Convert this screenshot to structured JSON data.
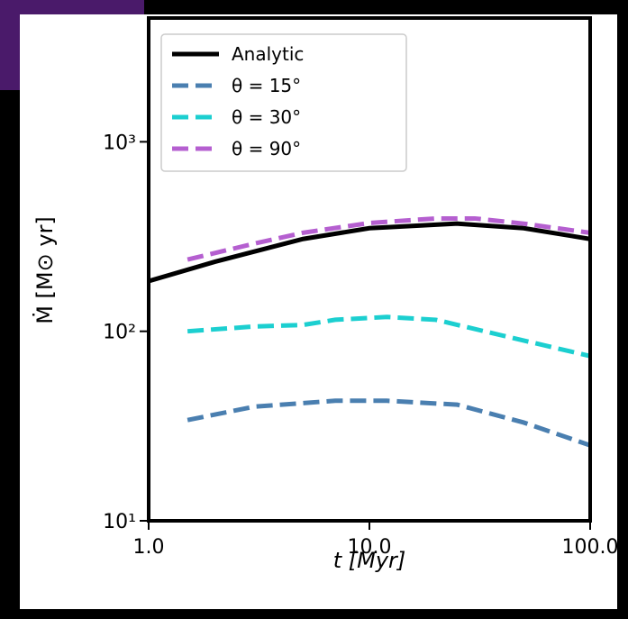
{
  "chart_data": {
    "type": "line",
    "log_x": true,
    "log_y": true,
    "xlabel": "t [Myr]",
    "ylabel": "Ṁ [M⊙ yr]",
    "xlim": [
      1,
      100
    ],
    "ylim": [
      10,
      4500
    ],
    "xticks": [
      {
        "value": 1,
        "label": "1.0"
      },
      {
        "value": 10,
        "label": "10.0"
      },
      {
        "value": 100,
        "label": "100.0"
      }
    ],
    "yticks": [
      {
        "value": 10,
        "label": "10¹"
      },
      {
        "value": 100,
        "label": "10²"
      },
      {
        "value": 1000,
        "label": "10³"
      }
    ],
    "legend": "upper left",
    "series": [
      {
        "name": "Analytic",
        "color": "#000000",
        "dashed": false,
        "x": [
          1,
          2,
          5,
          10,
          25,
          50,
          100
        ],
        "values": [
          184,
          233,
          307,
          350,
          370,
          350,
          307
        ]
      },
      {
        "name": "θ = 15°",
        "color": "#4a7fb0",
        "dashed": true,
        "x": [
          1.5,
          3,
          7,
          12,
          25,
          50,
          100
        ],
        "values": [
          34,
          40,
          43,
          43,
          41,
          33,
          25
        ]
      },
      {
        "name": "θ = 30°",
        "color": "#1ccfd0",
        "dashed": true,
        "x": [
          1.5,
          3,
          5,
          7,
          12,
          20,
          40,
          100
        ],
        "values": [
          100,
          106,
          108,
          115,
          119,
          115,
          95,
          74
        ]
      },
      {
        "name": "θ = 90°",
        "color": "#b55fd0",
        "dashed": true,
        "x": [
          1.5,
          3,
          5,
          10,
          20,
          30,
          50,
          100
        ],
        "values": [
          239,
          290,
          331,
          373,
          394,
          394,
          370,
          331
        ]
      }
    ]
  }
}
